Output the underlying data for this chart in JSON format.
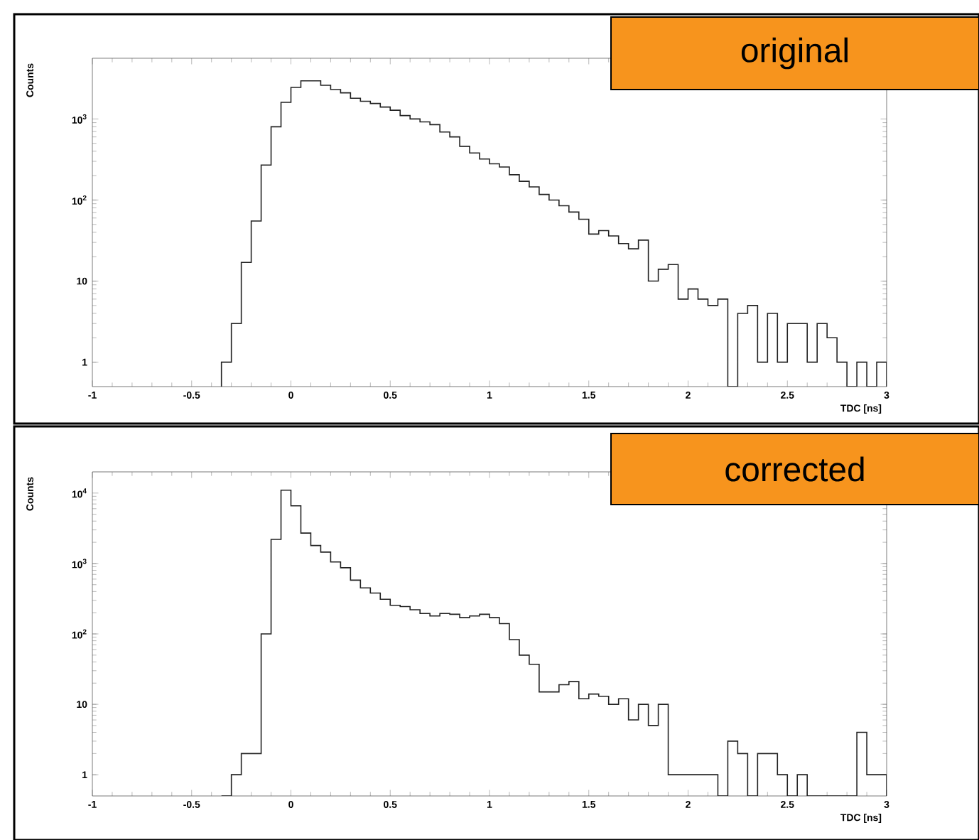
{
  "chart_data": [
    {
      "type": "histogram",
      "title": "original",
      "xlabel": "TDC [ns]",
      "ylabel": "Counts",
      "log": "y",
      "color": "#222222",
      "bins": [
        -0.35,
        -0.3,
        -0.25,
        -0.2,
        -0.15,
        -0.1,
        -0.05,
        0,
        0.05,
        0.1,
        0.15,
        0.2,
        0.25,
        0.3,
        0.35,
        0.4,
        0.45,
        0.5,
        0.55,
        0.6,
        0.65,
        0.7,
        0.75,
        0.8,
        0.85,
        0.9,
        0.95,
        1,
        1.05,
        1.1,
        1.15,
        1.2,
        1.25,
        1.3,
        1.35,
        1.4,
        1.45,
        1.5,
        1.55,
        1.6,
        1.65,
        1.7,
        1.75,
        1.8,
        1.85,
        1.9,
        1.95,
        2,
        2.05,
        2.1,
        2.15,
        2.2,
        2.25,
        2.3,
        2.35,
        2.4,
        2.45,
        2.5,
        2.55,
        2.6,
        2.65,
        2.7,
        2.75,
        2.8,
        2.85,
        2.9,
        2.95,
        3
      ],
      "values": [
        1,
        3,
        17,
        55,
        270,
        800,
        1600,
        2450,
        2950,
        2950,
        2600,
        2300,
        2100,
        1800,
        1650,
        1550,
        1400,
        1280,
        1100,
        1000,
        920,
        850,
        690,
        600,
        460,
        380,
        320,
        280,
        255,
        205,
        170,
        145,
        117,
        100,
        85,
        71,
        58,
        38,
        42,
        36,
        29,
        25,
        32,
        10,
        14,
        16,
        6,
        8,
        6,
        5,
        6,
        null,
        4,
        5,
        1,
        4,
        1,
        3,
        3,
        1,
        3,
        2,
        1,
        null,
        1,
        null,
        1
      ],
      "xlim": [
        -1,
        3
      ],
      "xticks": [
        -1,
        -0.5,
        0,
        0.5,
        1,
        1.5,
        2,
        2.5,
        3
      ],
      "ylim": [
        0.5,
        5600
      ],
      "yticks": [
        1,
        10,
        {
          "value": 100,
          "label": "10$^{2}$"
        },
        {
          "value": 1000,
          "label": "10$^{3}$"
        }
      ]
    },
    {
      "type": "histogram",
      "title": "corrected",
      "xlabel": "TDC [ns]",
      "ylabel": "Counts",
      "log": "y",
      "color": "#222222",
      "bins": [
        -0.35,
        -0.3,
        -0.25,
        -0.2,
        -0.15,
        -0.1,
        -0.05,
        0,
        0.05,
        0.1,
        0.15,
        0.2,
        0.25,
        0.3,
        0.35,
        0.4,
        0.45,
        0.5,
        0.55,
        0.6,
        0.65,
        0.7,
        0.75,
        0.8,
        0.85,
        0.9,
        0.95,
        1,
        1.05,
        1.1,
        1.15,
        1.2,
        1.25,
        1.3,
        1.35,
        1.4,
        1.45,
        1.5,
        1.55,
        1.6,
        1.65,
        1.7,
        1.75,
        1.8,
        1.85,
        1.9,
        1.95,
        2,
        2.05,
        2.1,
        2.15,
        2.2,
        2.25,
        2.3,
        2.35,
        2.4,
        2.45,
        2.5,
        2.55,
        2.6,
        2.65,
        2.7,
        2.75,
        2.8,
        2.85,
        2.9,
        2.95,
        3
      ],
      "values": [
        null,
        1,
        2,
        2,
        100,
        2200,
        11000,
        6600,
        2700,
        1800,
        1450,
        1050,
        870,
        580,
        450,
        380,
        310,
        255,
        245,
        220,
        195,
        180,
        195,
        190,
        170,
        180,
        190,
        170,
        140,
        83,
        50,
        37,
        15,
        15,
        19,
        21,
        12,
        14,
        13,
        10,
        12,
        6,
        10,
        5,
        10,
        1,
        1,
        1,
        1,
        1,
        null,
        3,
        2,
        null,
        2,
        2,
        1,
        null,
        1,
        null,
        null,
        null,
        null,
        null,
        4,
        1,
        1
      ],
      "xlim": [
        -1,
        3
      ],
      "xticks": [
        -1,
        -0.5,
        0,
        0.5,
        1,
        1.5,
        2,
        2.5,
        3
      ],
      "ylim": [
        0.5,
        20000
      ],
      "yticks": [
        1,
        10,
        {
          "value": 100,
          "label": "10$^{2}$"
        },
        {
          "value": 1000,
          "label": "10$^{3}$"
        },
        {
          "value": 10000,
          "label": "10$^{4}$"
        }
      ]
    }
  ]
}
